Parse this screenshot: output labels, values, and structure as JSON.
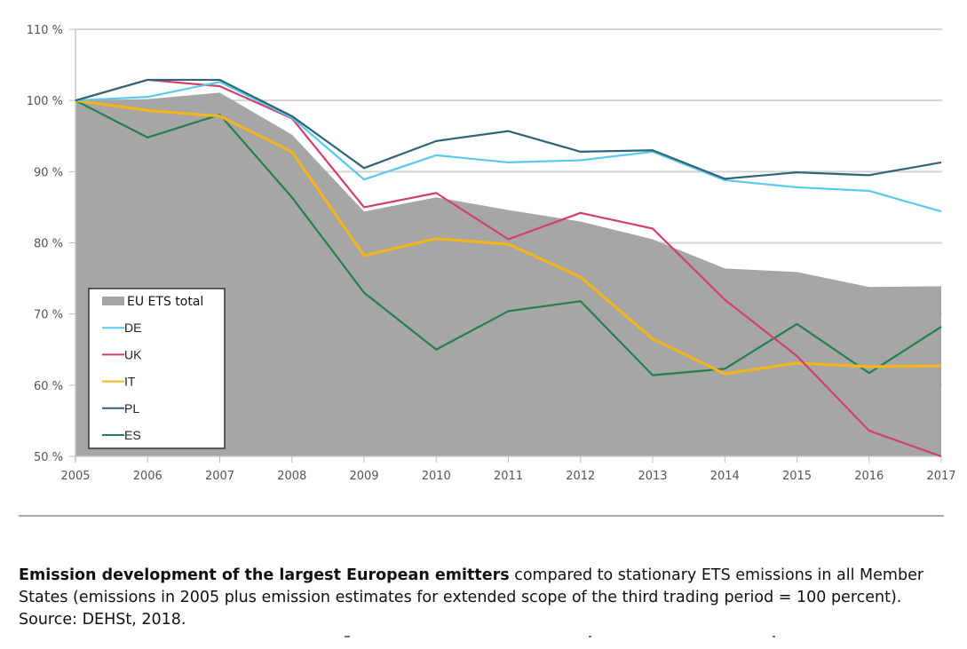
{
  "chart_data": {
    "type": "line",
    "title": "",
    "xlabel": "",
    "ylabel": "",
    "x": [
      2005,
      2006,
      2007,
      2008,
      2009,
      2010,
      2011,
      2012,
      2013,
      2014,
      2015,
      2016,
      2017
    ],
    "x_tick_labels": [
      "2005",
      "2006",
      "2007",
      "2008",
      "2009",
      "2010",
      "2011",
      "2012",
      "2013",
      "2014",
      "2015",
      "2016",
      "2017"
    ],
    "ylim": [
      50,
      110
    ],
    "y_ticks": [
      50,
      60,
      70,
      80,
      90,
      100,
      110
    ],
    "y_tick_labels": [
      "50 %",
      "60 %",
      "70 %",
      "80 %",
      "90 %",
      "100 %",
      "110 %"
    ],
    "grid": "horizontal",
    "legend_position": "bottom-left",
    "area_series": {
      "name": "EU ETS total",
      "color": "#a6a6a6",
      "values": [
        100,
        100.2,
        101.1,
        95.2,
        84.4,
        86.4,
        84.6,
        83.0,
        80.5,
        76.4,
        75.9,
        73.8,
        73.9
      ]
    },
    "series": [
      {
        "name": "DE",
        "color": "#5bc8ef",
        "values": [
          100,
          100.5,
          102.6,
          97.6,
          88.9,
          92.3,
          91.3,
          91.6,
          92.8,
          88.8,
          87.8,
          87.3,
          84.4
        ]
      },
      {
        "name": "UK",
        "color": "#d23f6e",
        "values": [
          100,
          102.9,
          102.0,
          97.5,
          85.0,
          87.0,
          80.5,
          84.2,
          82.0,
          72.0,
          64.1,
          53.6,
          50.0
        ]
      },
      {
        "name": "IT",
        "color": "#f2b51e",
        "values": [
          100,
          98.6,
          97.8,
          92.8,
          78.2,
          80.6,
          79.8,
          75.2,
          66.5,
          61.6,
          63.1,
          62.6,
          62.7
        ]
      },
      {
        "name": "PL",
        "color": "#2f6577",
        "values": [
          100,
          102.9,
          102.9,
          97.8,
          90.5,
          94.3,
          95.7,
          92.8,
          93.0,
          89.0,
          89.9,
          89.5,
          91.3
        ]
      },
      {
        "name": "ES",
        "color": "#23804a",
        "values": [
          100,
          94.8,
          98.0,
          86.4,
          73.0,
          65.0,
          70.4,
          71.8,
          61.4,
          62.3,
          68.6,
          61.7,
          68.2
        ]
      }
    ],
    "legend": [
      "EU ETS total",
      "DE",
      "UK",
      "IT",
      "PL",
      "ES"
    ]
  },
  "caption": {
    "bold": "Emission development of the largest European emitters",
    "line1_rest": " compared to stationary ETS emissions in all Member",
    "line2": "States (emissions in 2005 plus emission estimates for extended scope of the third trading period = 100 percent).",
    "line3": "Source: DEHSt, 2018."
  }
}
